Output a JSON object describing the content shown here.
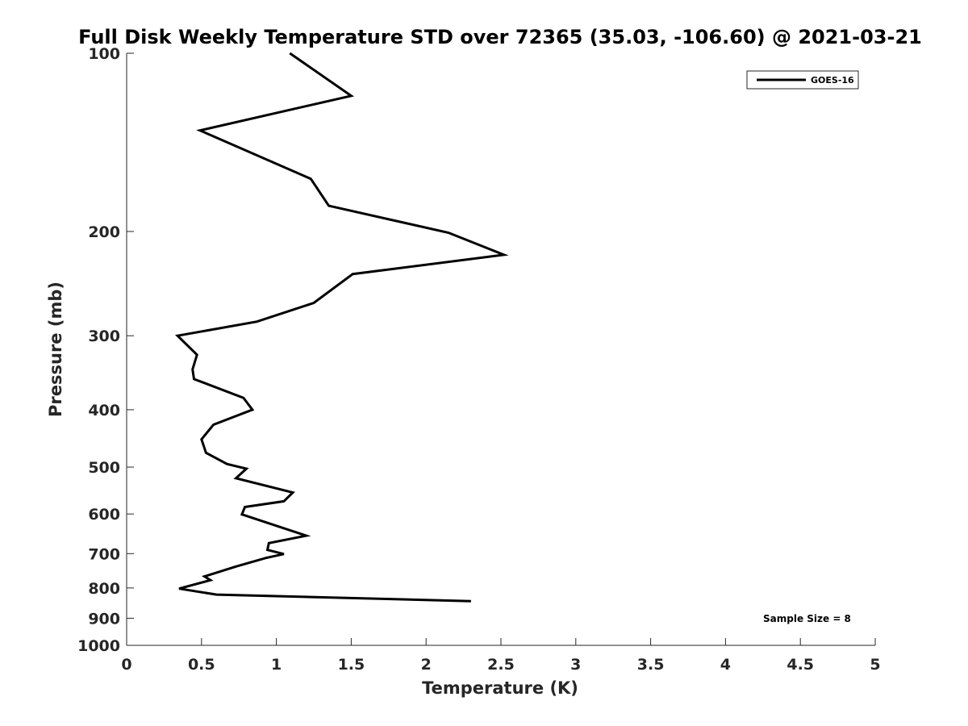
{
  "chart_data": {
    "type": "line",
    "title": "Full Disk Weekly Temperature STD over 72365 (35.03, -106.60) @ 2021-03-21",
    "xlabel": "Temperature (K)",
    "ylabel": "Pressure (mb)",
    "xlim": [
      0,
      5
    ],
    "ylim": [
      100,
      1000
    ],
    "y_scale": "log",
    "y_reversed": true,
    "x_ticks": [
      "0",
      "0.5",
      "1",
      "1.5",
      "2",
      "2.5",
      "3",
      "3.5",
      "4",
      "4.5",
      "5"
    ],
    "y_ticks": [
      "100",
      "200",
      "300",
      "400",
      "500",
      "600",
      "700",
      "800",
      "900",
      "1000"
    ],
    "grid": false,
    "legend_position": "top-right",
    "annotation": "Sample Size = 8",
    "series": [
      {
        "name": "GOES-16",
        "color": "#000000",
        "points": [
          {
            "x": 1.09,
            "y": 100
          },
          {
            "x": 1.5,
            "y": 118
          },
          {
            "x": 0.49,
            "y": 135
          },
          {
            "x": 1.23,
            "y": 163
          },
          {
            "x": 1.35,
            "y": 181
          },
          {
            "x": 2.15,
            "y": 201
          },
          {
            "x": 2.52,
            "y": 219
          },
          {
            "x": 1.51,
            "y": 236
          },
          {
            "x": 1.25,
            "y": 264
          },
          {
            "x": 0.87,
            "y": 284
          },
          {
            "x": 0.34,
            "y": 300
          },
          {
            "x": 0.47,
            "y": 323
          },
          {
            "x": 0.44,
            "y": 342
          },
          {
            "x": 0.45,
            "y": 355
          },
          {
            "x": 0.78,
            "y": 382
          },
          {
            "x": 0.84,
            "y": 400
          },
          {
            "x": 0.58,
            "y": 424
          },
          {
            "x": 0.5,
            "y": 449
          },
          {
            "x": 0.53,
            "y": 473
          },
          {
            "x": 0.67,
            "y": 494
          },
          {
            "x": 0.8,
            "y": 503
          },
          {
            "x": 0.73,
            "y": 522
          },
          {
            "x": 1.11,
            "y": 552
          },
          {
            "x": 1.05,
            "y": 571
          },
          {
            "x": 0.79,
            "y": 584
          },
          {
            "x": 0.77,
            "y": 601
          },
          {
            "x": 1.2,
            "y": 653
          },
          {
            "x": 0.95,
            "y": 672
          },
          {
            "x": 0.94,
            "y": 690
          },
          {
            "x": 1.05,
            "y": 701
          },
          {
            "x": 0.93,
            "y": 712
          },
          {
            "x": 0.73,
            "y": 736
          },
          {
            "x": 0.52,
            "y": 765
          },
          {
            "x": 0.56,
            "y": 776
          },
          {
            "x": 0.35,
            "y": 802
          },
          {
            "x": 0.6,
            "y": 821
          },
          {
            "x": 2.3,
            "y": 842
          }
        ]
      }
    ]
  }
}
